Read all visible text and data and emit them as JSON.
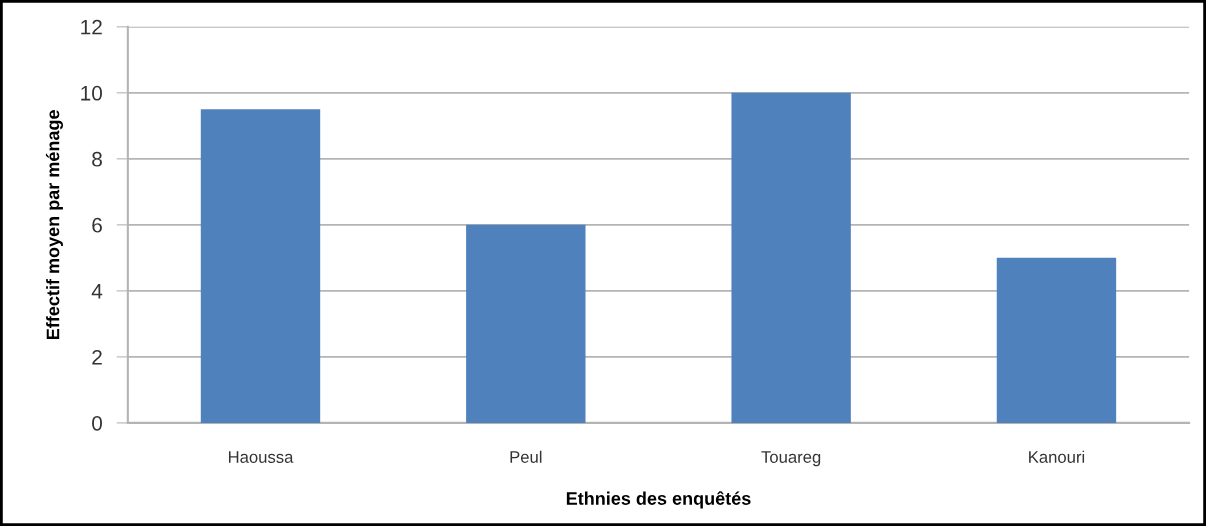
{
  "chart_data": {
    "type": "bar",
    "xlabel": "Ethnies des enquêtés",
    "ylabel": "Effectif moyen par ménage",
    "categories": [
      "Haoussa",
      "Peul",
      "Touareg",
      "Kanouri"
    ],
    "values": [
      9.5,
      6,
      10,
      5
    ],
    "color": "#4f81bd",
    "ylim": [
      0,
      12
    ],
    "yticks": [
      0,
      2,
      4,
      6,
      8,
      10,
      12
    ],
    "grid": "y"
  }
}
